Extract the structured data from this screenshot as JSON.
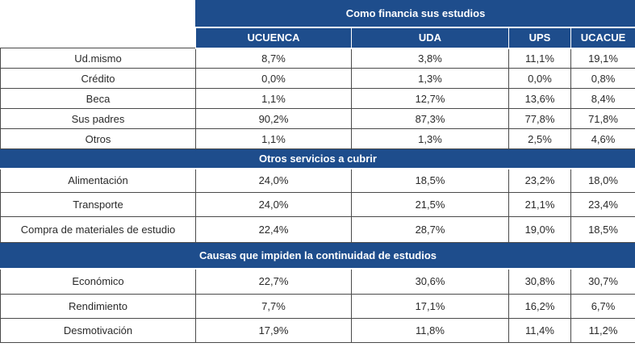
{
  "header": {
    "title": "Como financia sus estudios",
    "columns": [
      "UCUENCA",
      "UDA",
      "UPS",
      "UCACUE"
    ]
  },
  "sections": [
    {
      "title": "",
      "rows": [
        {
          "label": "Ud.mismo",
          "values": [
            "8,7%",
            "3,8%",
            "11,1%",
            "19,1%"
          ]
        },
        {
          "label": "Crédito",
          "values": [
            "0,0%",
            "1,3%",
            "0,0%",
            "0,8%"
          ]
        },
        {
          "label": "Beca",
          "values": [
            "1,1%",
            "12,7%",
            "13,6%",
            "8,4%"
          ]
        },
        {
          "label": "Sus padres",
          "values": [
            "90,2%",
            "87,3%",
            "77,8%",
            "71,8%"
          ]
        },
        {
          "label": "Otros",
          "values": [
            "1,1%",
            "1,3%",
            "2,5%",
            "4,6%"
          ]
        }
      ]
    },
    {
      "title": "Otros servicios a cubrir",
      "rows": [
        {
          "label": "Alimentación",
          "values": [
            "24,0%",
            "18,5%",
            "23,2%",
            "18,0%"
          ]
        },
        {
          "label": "Transporte",
          "values": [
            "24,0%",
            "21,5%",
            "21,1%",
            "23,4%"
          ]
        },
        {
          "label": "Compra de materiales de estudio",
          "values": [
            "22,4%",
            "28,7%",
            "19,0%",
            "18,5%"
          ]
        }
      ]
    },
    {
      "title": "Causas que impiden la continuidad de estudios",
      "rows": [
        {
          "label": "Económico",
          "values": [
            "22,7%",
            "30,6%",
            "30,8%",
            "30,7%"
          ]
        },
        {
          "label": "Rendimiento",
          "values": [
            "7,7%",
            "17,1%",
            "16,2%",
            "6,7%"
          ]
        },
        {
          "label": "Desmotivación",
          "values": [
            "17,9%",
            "11,8%",
            "11,4%",
            "11,2%"
          ]
        }
      ]
    }
  ]
}
